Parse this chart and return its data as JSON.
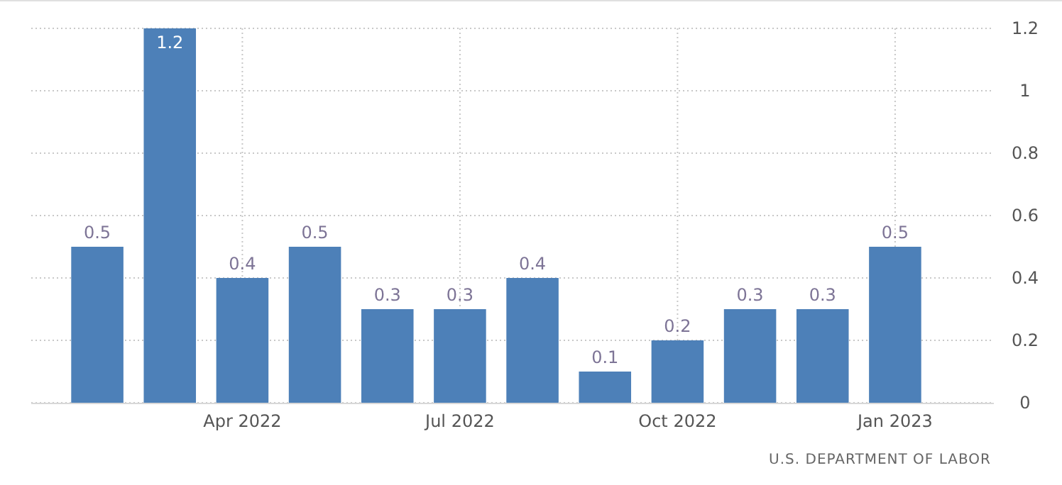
{
  "chart_data": {
    "type": "bar",
    "categories": [
      null,
      null,
      "Apr 2022",
      null,
      null,
      "Jul 2022",
      null,
      null,
      "Oct 2022",
      null,
      null,
      "Jan 2023"
    ],
    "values": [
      0.5,
      1.2,
      0.4,
      0.5,
      0.3,
      0.3,
      0.4,
      0.1,
      0.2,
      0.3,
      0.3,
      0.5
    ],
    "color": "#4d80b8",
    "ylim": [
      0,
      1.2
    ],
    "yticks": [
      0,
      0.2,
      0.4,
      0.6,
      0.8,
      1,
      1.2
    ],
    "grid": true,
    "data_labels": true,
    "annotations": [
      "U.S. DEPARTMENT OF LABOR"
    ]
  }
}
